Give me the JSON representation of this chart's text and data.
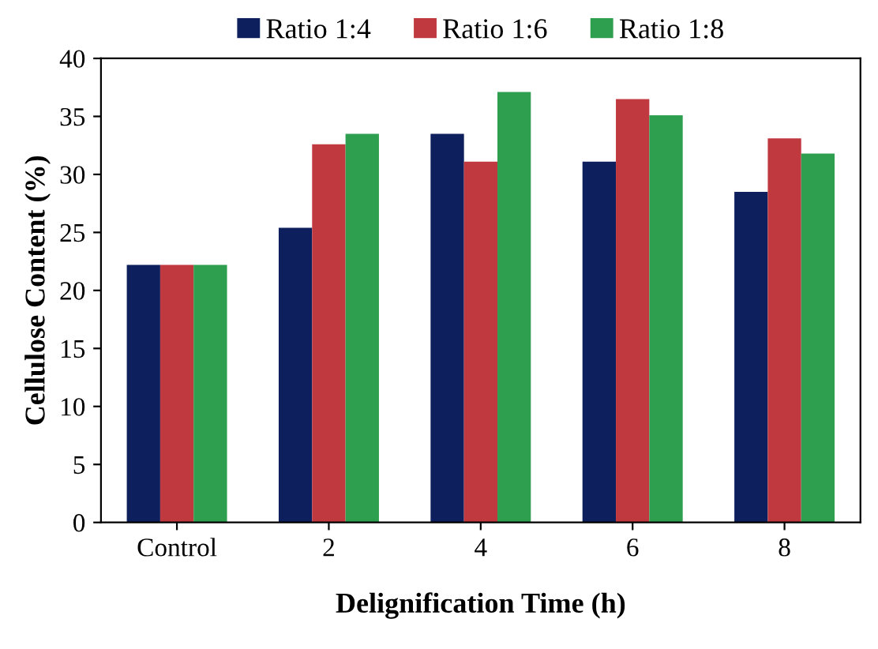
{
  "chart_data": {
    "type": "bar",
    "xlabel": "Delignification Time (h)",
    "ylabel": "Cellulose Content (%)",
    "categories": [
      "Control",
      "2",
      "4",
      "6",
      "8"
    ],
    "series": [
      {
        "name": "Ratio 1:4",
        "color": "#0d1f5c",
        "values": [
          22.2,
          25.4,
          33.5,
          31.1,
          28.5
        ]
      },
      {
        "name": "Ratio 1:6",
        "color": "#c0393f",
        "values": [
          22.2,
          32.6,
          31.1,
          36.5,
          33.1
        ]
      },
      {
        "name": "Ratio 1:8",
        "color": "#2e9e4f",
        "values": [
          22.2,
          33.5,
          37.1,
          35.1,
          31.8
        ]
      }
    ],
    "ylim": [
      0,
      40
    ],
    "yticks": [
      0,
      5,
      10,
      15,
      20,
      25,
      30,
      35,
      40
    ],
    "grid": false,
    "legend": "top"
  }
}
